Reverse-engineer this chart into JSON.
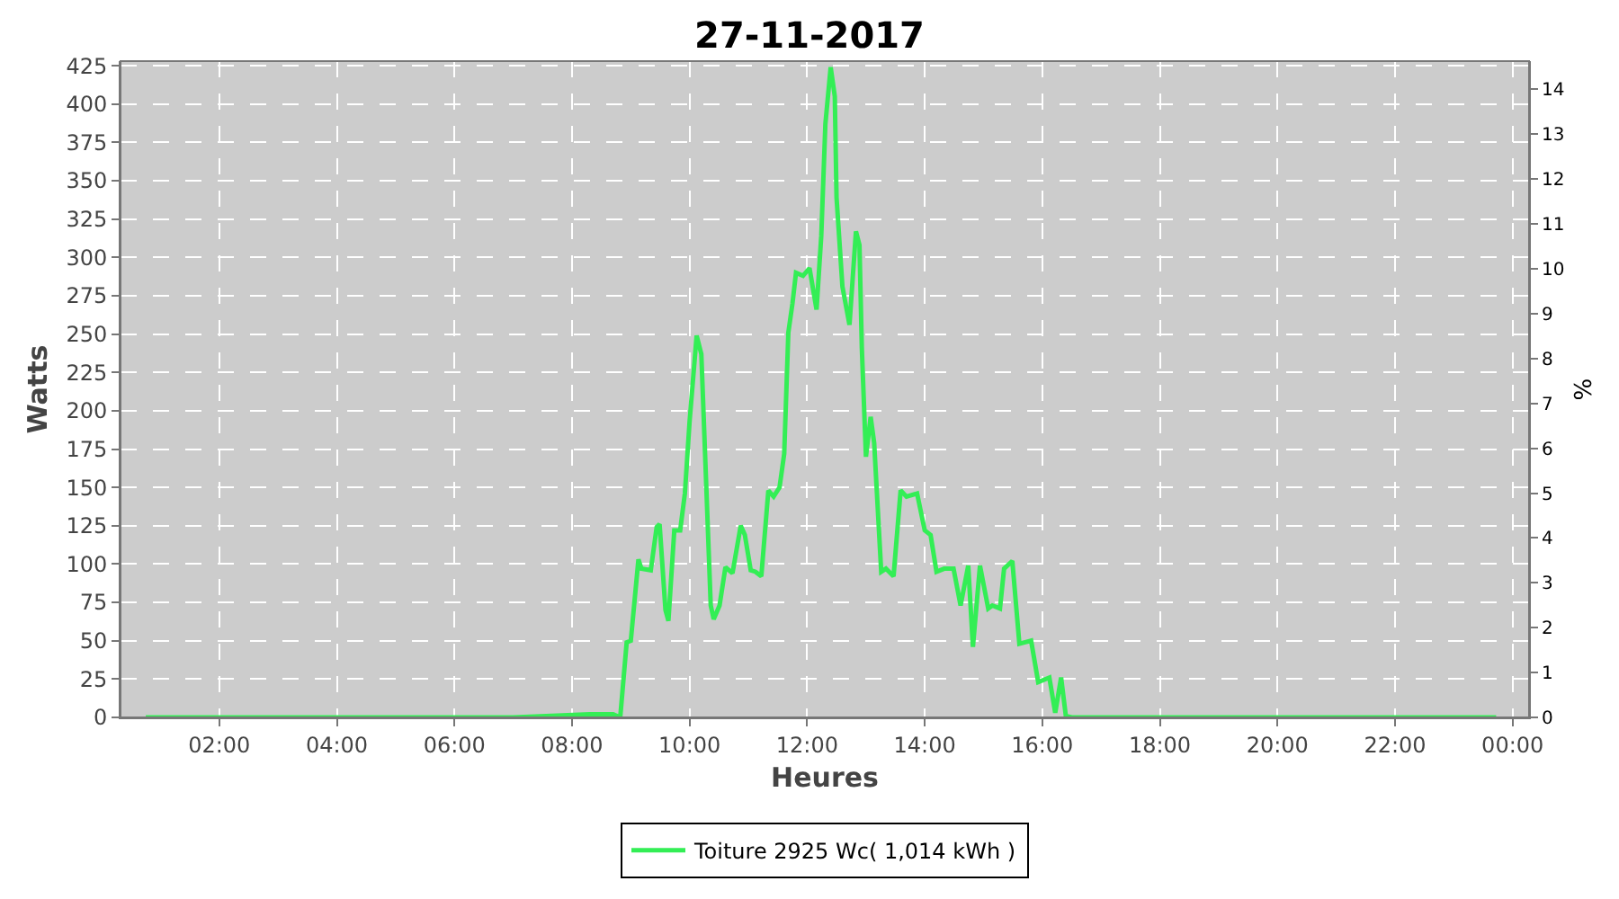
{
  "chart_data": {
    "type": "line",
    "title": "27-11-2017",
    "xlabel": "Heures",
    "ylabel": "Watts",
    "y2label": "%",
    "xlim": [
      0.32,
      24.28
    ],
    "xticks": [
      {
        "value": 2,
        "label": "02:00"
      },
      {
        "value": 4,
        "label": "04:00"
      },
      {
        "value": 6,
        "label": "06:00"
      },
      {
        "value": 8,
        "label": "08:00"
      },
      {
        "value": 10,
        "label": "10:00"
      },
      {
        "value": 12,
        "label": "12:00"
      },
      {
        "value": 14,
        "label": "14:00"
      },
      {
        "value": 16,
        "label": "16:00"
      },
      {
        "value": 18,
        "label": "18:00"
      },
      {
        "value": 20,
        "label": "20:00"
      },
      {
        "value": 22,
        "label": "22:00"
      },
      {
        "value": 24,
        "label": "00:00"
      }
    ],
    "ylim": [
      0,
      428
    ],
    "yticks": [
      0,
      25,
      50,
      75,
      100,
      125,
      150,
      175,
      200,
      225,
      250,
      275,
      300,
      325,
      350,
      375,
      400,
      425
    ],
    "y2lim": [
      0,
      14.63
    ],
    "y2ticks": [
      0,
      1,
      2,
      3,
      4,
      5,
      6,
      7,
      8,
      9,
      10,
      11,
      12,
      13,
      14
    ],
    "grid": true,
    "legend": "bottom",
    "marker": "none",
    "line_style": "solid",
    "series": [
      {
        "name": "Toiture 2925 Wc( 1,014 kWh )",
        "color": "#33ee55",
        "x": [
          0.75,
          7.0,
          8.3,
          8.7,
          8.82,
          8.93,
          9.0,
          9.13,
          9.18,
          9.34,
          9.44,
          9.49,
          9.59,
          9.64,
          9.74,
          9.84,
          9.92,
          10.0,
          10.12,
          10.2,
          10.36,
          10.41,
          10.51,
          10.61,
          10.73,
          10.87,
          10.94,
          11.04,
          11.12,
          11.22,
          11.34,
          11.43,
          11.53,
          11.61,
          11.68,
          11.75,
          11.81,
          11.93,
          12.04,
          12.16,
          12.24,
          12.31,
          12.4,
          12.47,
          12.5,
          12.6,
          12.72,
          12.83,
          12.89,
          12.93,
          13.0,
          13.08,
          13.14,
          13.26,
          13.34,
          13.47,
          13.59,
          13.69,
          13.87,
          14.0,
          14.1,
          14.2,
          14.33,
          14.49,
          14.61,
          14.74,
          14.82,
          14.94,
          15.08,
          15.15,
          15.28,
          15.35,
          15.49,
          15.61,
          15.71,
          15.81,
          15.93,
          16.12,
          16.22,
          16.32,
          16.4,
          16.5,
          23.72
        ],
        "values": [
          0,
          0,
          2,
          2,
          0,
          49,
          50,
          103,
          97,
          96,
          124,
          126,
          70,
          63,
          122,
          122,
          146,
          193,
          249,
          237,
          73,
          64,
          73,
          98,
          94,
          125,
          119,
          96,
          95,
          92,
          148,
          144,
          150,
          172,
          251,
          270,
          290,
          288,
          293,
          266,
          314,
          387,
          424,
          405,
          339,
          281,
          256,
          317,
          308,
          241,
          170,
          196,
          179,
          95,
          97,
          92,
          148,
          144,
          146,
          122,
          119,
          95,
          97,
          97,
          73,
          99,
          46,
          99,
          71,
          73,
          71,
          97,
          102,
          48,
          49,
          50,
          23,
          26,
          3,
          26,
          1,
          0,
          0
        ]
      }
    ]
  }
}
